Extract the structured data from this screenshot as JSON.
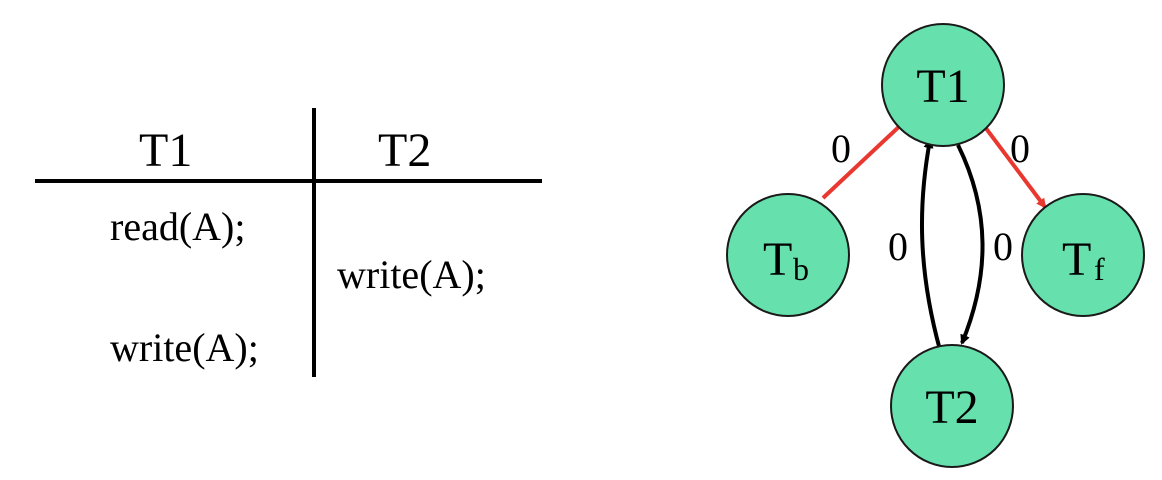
{
  "schedule": {
    "columns": [
      "T1",
      "T2"
    ],
    "operations": [
      {
        "transaction": "T1",
        "text": "read(A);"
      },
      {
        "transaction": "T2",
        "text": "write(A);"
      },
      {
        "transaction": "T1",
        "text": "write(A);"
      }
    ]
  },
  "graph": {
    "nodes": [
      {
        "id": "T1",
        "label": "T1",
        "subscript": ""
      },
      {
        "id": "T2",
        "label": "T2",
        "subscript": ""
      },
      {
        "id": "Tb",
        "label": "T",
        "subscript": "b"
      },
      {
        "id": "Tf",
        "label": "T",
        "subscript": "f"
      }
    ],
    "edges": [
      {
        "from": "Tb",
        "to": "T1",
        "label": "0",
        "color": "#e8382f"
      },
      {
        "from": "T1",
        "to": "Tf",
        "label": "0",
        "color": "#e8382f"
      },
      {
        "from": "T2",
        "to": "T1",
        "label": "0",
        "color": "#000000"
      },
      {
        "from": "T1",
        "to": "T2",
        "label": "0",
        "color": "#000000"
      }
    ],
    "node_fill": "#66e0ac",
    "node_stroke": "#1a1a1a"
  }
}
